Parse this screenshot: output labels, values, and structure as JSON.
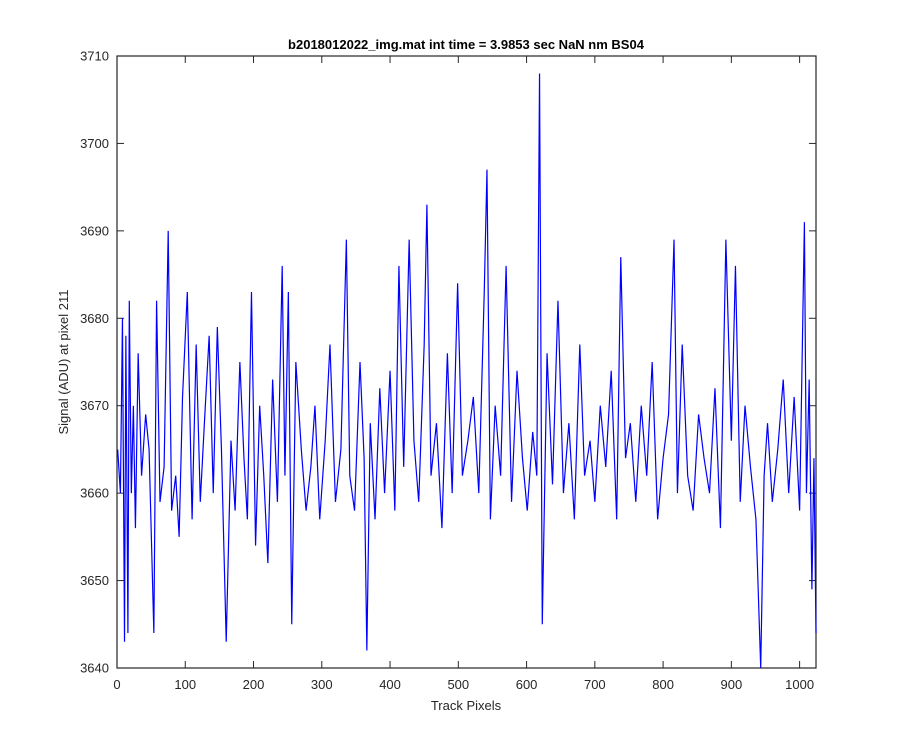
{
  "chart_data": {
    "type": "line",
    "title": "b2018012022_img.mat int time = 3.9853 sec  NaN nm BS04",
    "xlabel": "Track Pixels",
    "ylabel": "Signal (ADU) at pixel 211",
    "xlim": [
      0,
      1024
    ],
    "ylim": [
      3640,
      3710
    ],
    "xticks": [
      "0",
      "100",
      "200",
      "300",
      "400",
      "500",
      "600",
      "700",
      "800",
      "900",
      "1000"
    ],
    "yticks": [
      "3640",
      "3650",
      "3660",
      "3670",
      "3680",
      "3690",
      "3700",
      "3710"
    ],
    "grid": false,
    "legend": "none",
    "series": [
      {
        "color": "#0000ff",
        "x": [
          1,
          5,
          8,
          11,
          13,
          16,
          18,
          21,
          24,
          27,
          31,
          36,
          42,
          47,
          54,
          58,
          63,
          69,
          75,
          80,
          86,
          91,
          96,
          103,
          110,
          116,
          122,
          128,
          135,
          141,
          147,
          153,
          160,
          167,
          173,
          180,
          186,
          191,
          197,
          203,
          209,
          215,
          221,
          228,
          235,
          242,
          246,
          251,
          256,
          262,
          270,
          277,
          284,
          290,
          297,
          305,
          312,
          320,
          328,
          336,
          341,
          348,
          356,
          362,
          366,
          371,
          378,
          385,
          392,
          400,
          407,
          413,
          420,
          428,
          435,
          442,
          450,
          454,
          460,
          468,
          476,
          484,
          491,
          499,
          506,
          514,
          522,
          530,
          538,
          542,
          547,
          554,
          562,
          570,
          578,
          586,
          594,
          601,
          609,
          615,
          619,
          623,
          630,
          638,
          646,
          654,
          662,
          670,
          678,
          685,
          693,
          700,
          708,
          716,
          724,
          732,
          738,
          745,
          752,
          760,
          768,
          776,
          784,
          792,
          800,
          808,
          816,
          821,
          828,
          836,
          844,
          852,
          860,
          868,
          876,
          884,
          892,
          900,
          906,
          913,
          920,
          928,
          936,
          943,
          948,
          953,
          960,
          968,
          976,
          984,
          992,
          1000,
          1007,
          1010,
          1014,
          1018,
          1021,
          1024
        ],
        "y": [
          3665,
          3660,
          3680,
          3643,
          3678,
          3644,
          3682,
          3660,
          3670,
          3656,
          3676,
          3662,
          3669,
          3665,
          3644,
          3682,
          3659,
          3663,
          3690,
          3658,
          3662,
          3655,
          3671,
          3683,
          3657,
          3677,
          3659,
          3668,
          3678,
          3660,
          3679,
          3665,
          3643,
          3666,
          3658,
          3675,
          3664,
          3657,
          3683,
          3654,
          3670,
          3662,
          3652,
          3673,
          3659,
          3686,
          3662,
          3683,
          3645,
          3675,
          3665,
          3658,
          3663,
          3670,
          3657,
          3666,
          3677,
          3659,
          3665,
          3689,
          3662,
          3658,
          3675,
          3664,
          3642,
          3668,
          3657,
          3672,
          3660,
          3674,
          3658,
          3686,
          3663,
          3689,
          3666,
          3659,
          3677,
          3693,
          3662,
          3668,
          3656,
          3676,
          3660,
          3684,
          3662,
          3666,
          3671,
          3660,
          3683,
          3697,
          3657,
          3670,
          3662,
          3686,
          3659,
          3674,
          3664,
          3658,
          3667,
          3662,
          3708,
          3645,
          3676,
          3661,
          3682,
          3660,
          3668,
          3657,
          3677,
          3662,
          3666,
          3659,
          3670,
          3663,
          3674,
          3657,
          3687,
          3664,
          3668,
          3659,
          3670,
          3662,
          3675,
          3657,
          3664,
          3669,
          3689,
          3660,
          3677,
          3662,
          3658,
          3669,
          3664,
          3660,
          3672,
          3656,
          3689,
          3666,
          3686,
          3659,
          3670,
          3663,
          3657,
          3640,
          3662,
          3668,
          3659,
          3665,
          3673,
          3660,
          3671,
          3658,
          3691,
          3660,
          3673,
          3649,
          3664,
          3644
        ]
      }
    ]
  }
}
